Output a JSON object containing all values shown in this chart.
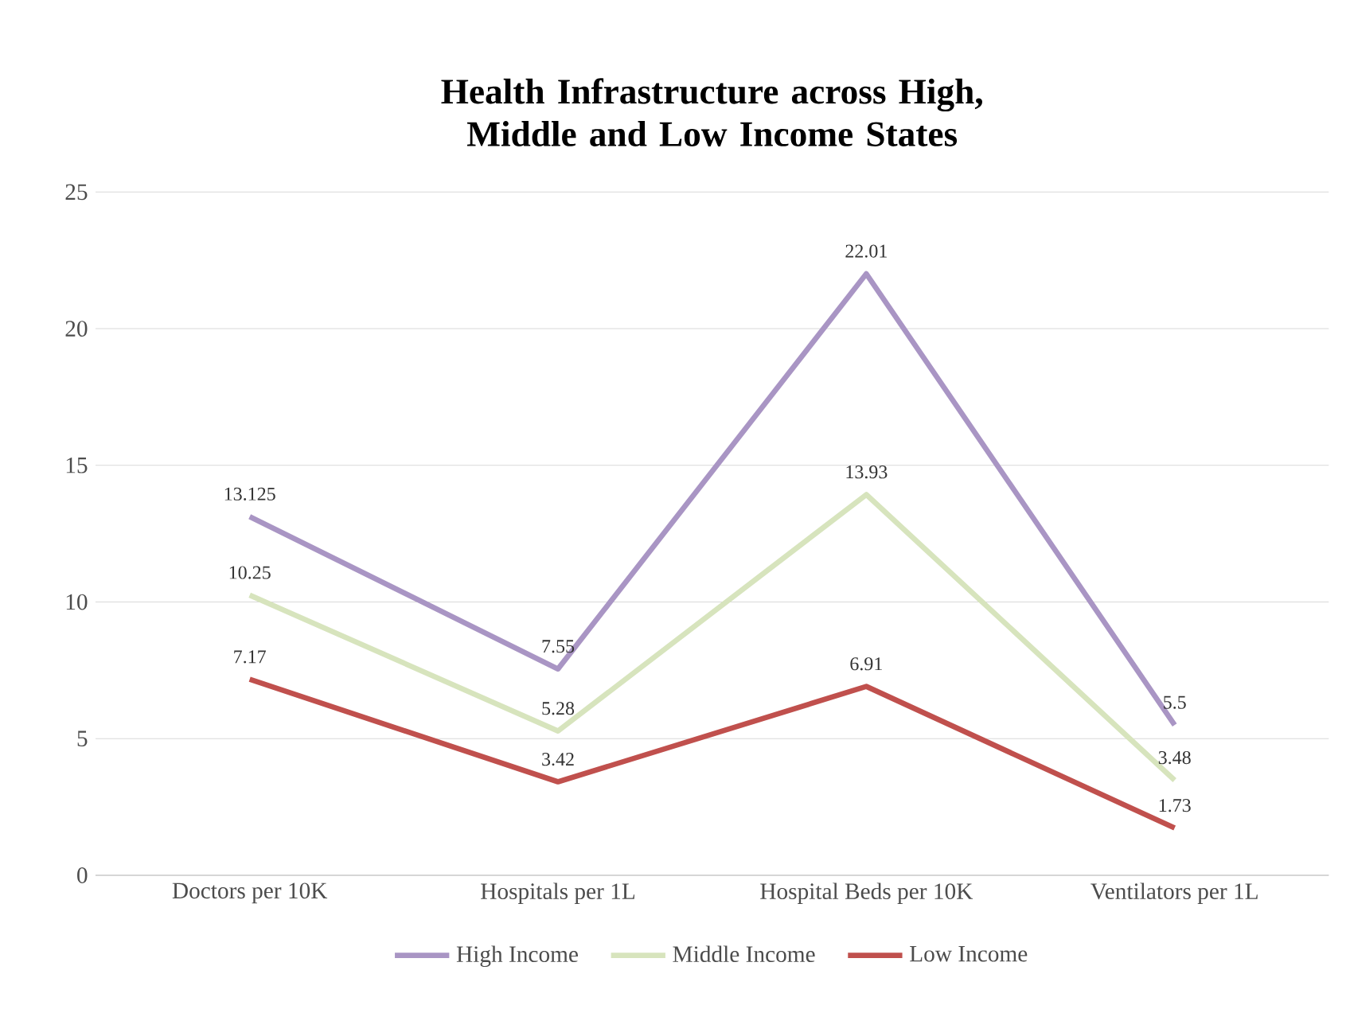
{
  "chart_data": {
    "type": "line",
    "title": "Health Infrastructure  across High, Middle and Low Income States",
    "categories": [
      "Doctors per 10K",
      "Hospitals per 1L",
      "Hospital Beds per 10K",
      "Ventilators per 1L"
    ],
    "series": [
      {
        "name": "High Income",
        "color": "#a995c4",
        "values": [
          13.125,
          7.55,
          22.01,
          5.5
        ]
      },
      {
        "name": "Middle Income",
        "color": "#d7e4bd",
        "values": [
          10.25,
          5.28,
          13.93,
          3.48
        ]
      },
      {
        "name": "Low Income",
        "color": "#c0504d",
        "values": [
          7.17,
          3.42,
          6.91,
          1.73
        ]
      }
    ],
    "ylim": [
      0,
      25
    ],
    "yticks": [
      0,
      5,
      10,
      15,
      20,
      25
    ],
    "grid": "y",
    "legend": "bottom",
    "data_labels": true,
    "marker": "none",
    "line_style": "solid"
  }
}
